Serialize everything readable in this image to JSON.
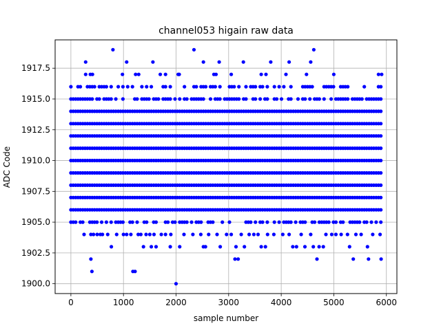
{
  "chart_data": {
    "type": "scatter",
    "title": "channel053 higain raw data",
    "xlabel": "sample number",
    "ylabel": "ADC Code",
    "xlim": [
      -300,
      6200
    ],
    "ylim": [
      1899.2,
      1919.8
    ],
    "xticks": [
      0,
      1000,
      2000,
      3000,
      4000,
      5000,
      6000
    ],
    "yticks": [
      1900.0,
      1902.5,
      1905.0,
      1907.5,
      1910.0,
      1912.5,
      1915.0,
      1917.5
    ],
    "xtick_labels": [
      "0",
      "1000",
      "2000",
      "3000",
      "4000",
      "5000",
      "6000"
    ],
    "ytick_labels": [
      "1900.0",
      "1902.5",
      "1905.0",
      "1907.5",
      "1910.0",
      "1912.5",
      "1915.0",
      "1917.5"
    ],
    "grid": true,
    "marker_color": "#0000ff",
    "series": [
      {
        "dense_levels": [
          1906,
          1907,
          1908,
          1909,
          1910,
          1911,
          1912,
          1913,
          1914
        ],
        "dense_x_range": [
          0,
          5920
        ],
        "medium_levels": [
          1905,
          1915,
          1916
        ],
        "sparse_points": [
          [
            2000,
            1900
          ],
          [
            400,
            1901
          ],
          [
            1180,
            1901
          ],
          [
            1220,
            1901
          ],
          [
            380,
            1902
          ],
          [
            3120,
            1902
          ],
          [
            3180,
            1902
          ],
          [
            4680,
            1902
          ],
          [
            5370,
            1902
          ],
          [
            5660,
            1902
          ],
          [
            5900,
            1902
          ],
          [
            770,
            1903
          ],
          [
            1380,
            1903
          ],
          [
            1530,
            1903
          ],
          [
            1620,
            1903
          ],
          [
            1890,
            1903
          ],
          [
            2070,
            1903
          ],
          [
            2520,
            1903
          ],
          [
            2560,
            1903
          ],
          [
            2840,
            1903
          ],
          [
            3140,
            1903
          ],
          [
            3300,
            1903
          ],
          [
            3620,
            1903
          ],
          [
            3700,
            1903
          ],
          [
            4220,
            1903
          ],
          [
            4290,
            1903
          ],
          [
            4450,
            1903
          ],
          [
            4610,
            1903
          ],
          [
            4720,
            1903
          ],
          [
            4800,
            1903
          ],
          [
            5300,
            1903
          ],
          [
            5640,
            1903
          ],
          [
            250,
            1904
          ],
          [
            380,
            1904
          ],
          [
            430,
            1904
          ],
          [
            500,
            1904
          ],
          [
            560,
            1904
          ],
          [
            600,
            1904
          ],
          [
            700,
            1904
          ],
          [
            870,
            1904
          ],
          [
            1000,
            1904
          ],
          [
            1060,
            1904
          ],
          [
            1140,
            1904
          ],
          [
            1280,
            1904
          ],
          [
            1330,
            1904
          ],
          [
            1430,
            1904
          ],
          [
            1500,
            1904
          ],
          [
            1580,
            1904
          ],
          [
            1720,
            1904
          ],
          [
            1800,
            1904
          ],
          [
            1900,
            1904
          ],
          [
            2150,
            1904
          ],
          [
            2320,
            1904
          ],
          [
            2470,
            1904
          ],
          [
            2620,
            1904
          ],
          [
            2780,
            1904
          ],
          [
            2960,
            1904
          ],
          [
            3050,
            1904
          ],
          [
            3240,
            1904
          ],
          [
            3390,
            1904
          ],
          [
            3480,
            1904
          ],
          [
            3560,
            1904
          ],
          [
            3740,
            1904
          ],
          [
            3860,
            1904
          ],
          [
            4030,
            1904
          ],
          [
            4150,
            1904
          ],
          [
            4380,
            1904
          ],
          [
            4560,
            1904
          ],
          [
            4850,
            1904
          ],
          [
            4960,
            1904
          ],
          [
            5040,
            1904
          ],
          [
            5140,
            1904
          ],
          [
            5260,
            1904
          ],
          [
            5420,
            1904
          ],
          [
            5520,
            1904
          ],
          [
            5740,
            1904
          ],
          [
            5880,
            1904
          ],
          [
            280,
            1917
          ],
          [
            370,
            1917
          ],
          [
            410,
            1917
          ],
          [
            980,
            1917
          ],
          [
            1230,
            1917
          ],
          [
            1290,
            1917
          ],
          [
            1700,
            1917
          ],
          [
            1800,
            1917
          ],
          [
            2040,
            1917
          ],
          [
            2060,
            1917
          ],
          [
            2720,
            1917
          ],
          [
            2760,
            1917
          ],
          [
            3050,
            1917
          ],
          [
            3620,
            1917
          ],
          [
            3710,
            1917
          ],
          [
            4090,
            1917
          ],
          [
            4480,
            1917
          ],
          [
            5000,
            1917
          ],
          [
            5850,
            1917
          ],
          [
            5910,
            1917
          ],
          [
            280,
            1918
          ],
          [
            1060,
            1918
          ],
          [
            1560,
            1918
          ],
          [
            2520,
            1918
          ],
          [
            2820,
            1918
          ],
          [
            3280,
            1918
          ],
          [
            3800,
            1918
          ],
          [
            4150,
            1918
          ],
          [
            4560,
            1918
          ],
          [
            800,
            1919
          ],
          [
            2340,
            1919
          ],
          [
            4620,
            1919
          ]
        ]
      }
    ]
  }
}
